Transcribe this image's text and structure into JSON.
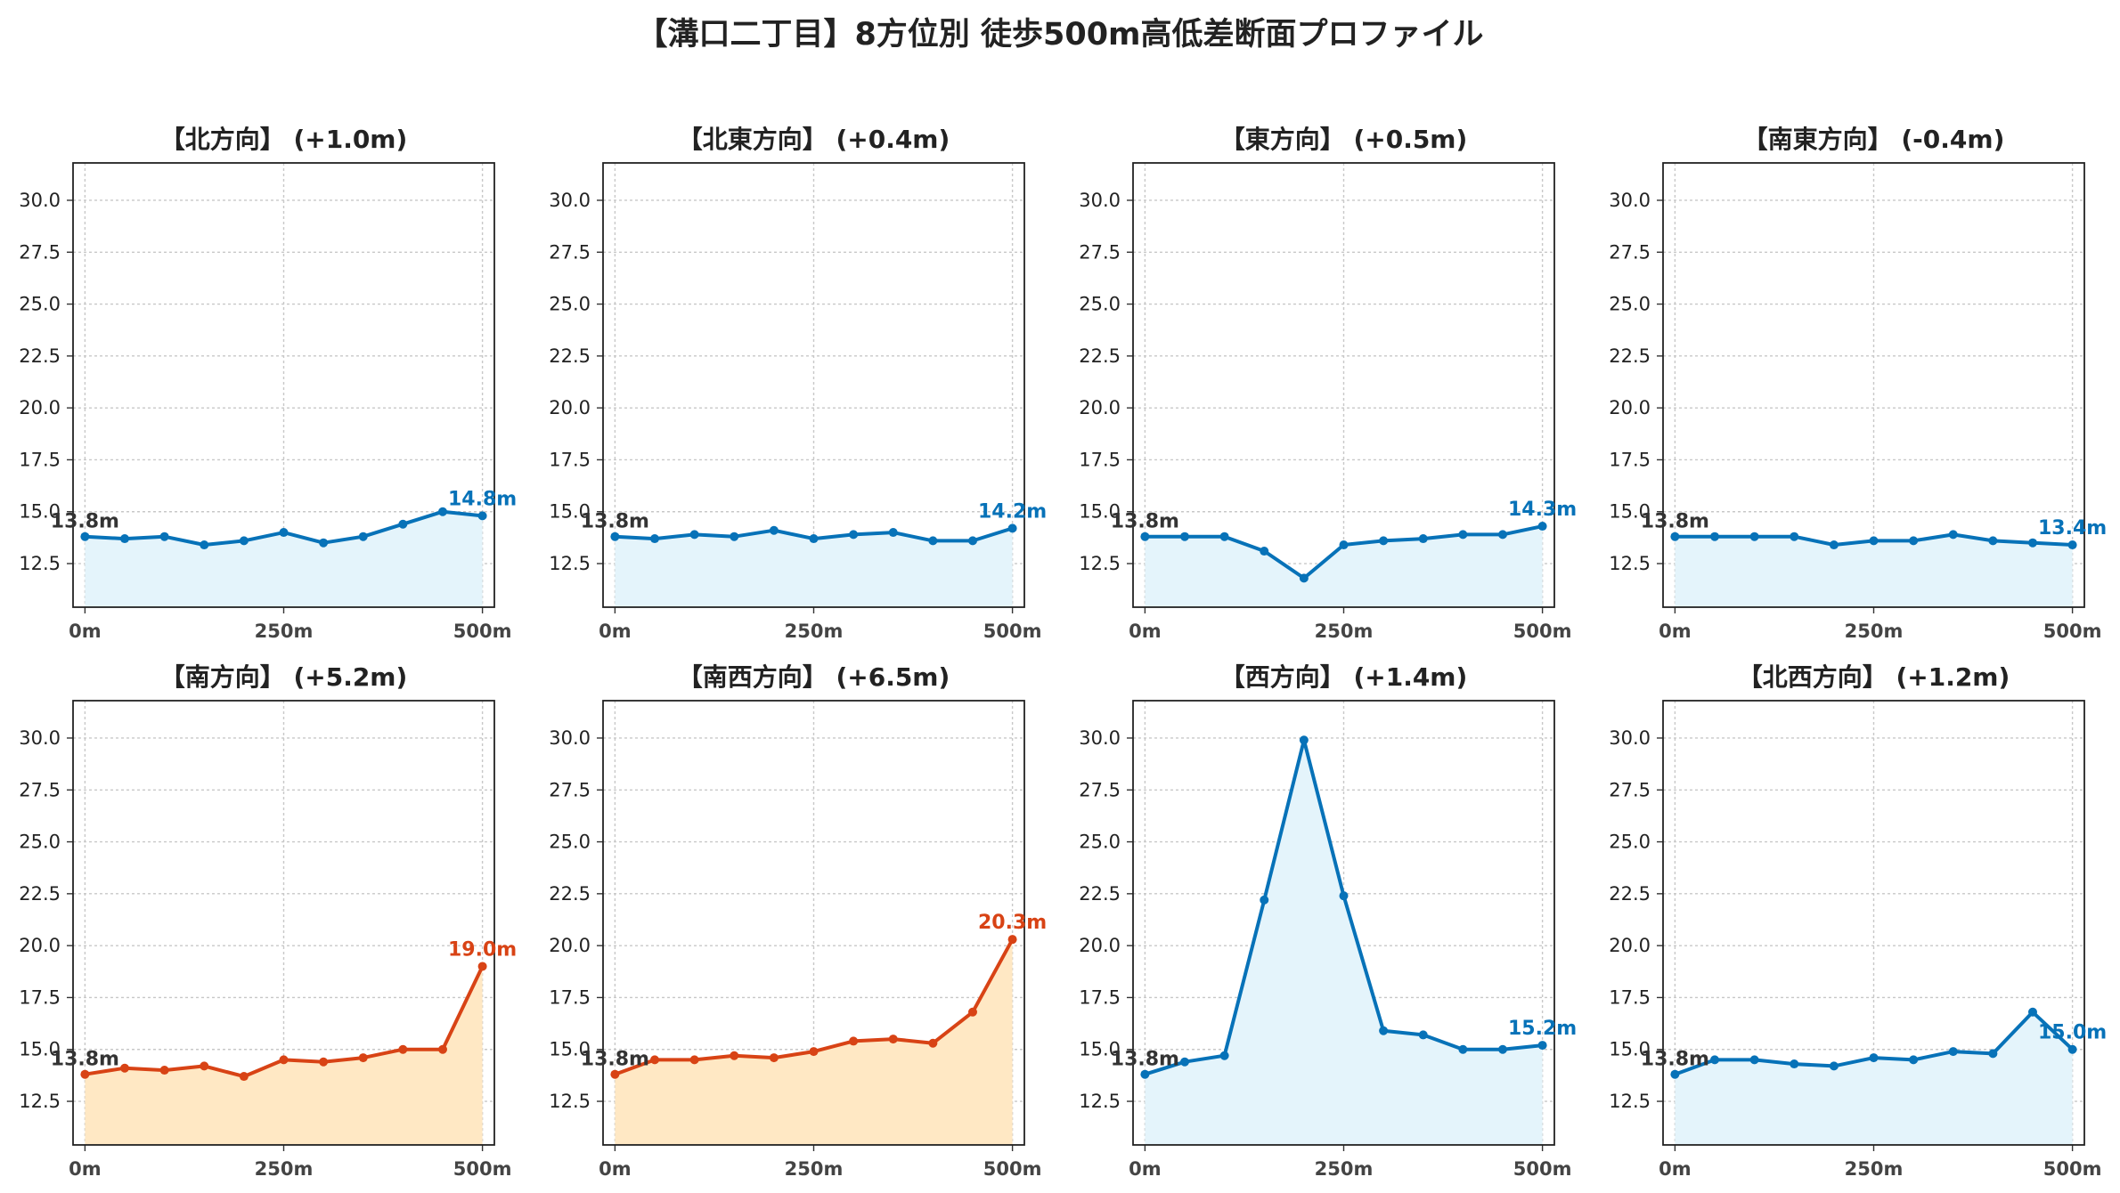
{
  "title": "【溝口二丁目】8方位別 徒歩500m高低差断面プロファイル",
  "colors": {
    "up": "#d84315",
    "up_fill": "#ffe8c4",
    "flat": "#0772b8",
    "flat_fill": "#e4f4fb",
    "grid": "#c8c8c8"
  },
  "chart_data": [
    {
      "type": "area",
      "title": "【北方向】 (+1.0m)",
      "trend": "flat",
      "x": [
        0,
        50,
        100,
        150,
        200,
        250,
        300,
        350,
        400,
        450,
        500
      ],
      "y": [
        13.8,
        13.7,
        13.8,
        13.4,
        13.6,
        14.0,
        13.5,
        13.8,
        14.4,
        15.0,
        14.8
      ],
      "start_label": "13.8m",
      "end_label": "14.8m"
    },
    {
      "type": "area",
      "title": "【北東方向】 (+0.4m)",
      "trend": "flat",
      "x": [
        0,
        50,
        100,
        150,
        200,
        250,
        300,
        350,
        400,
        450,
        500
      ],
      "y": [
        13.8,
        13.7,
        13.9,
        13.8,
        14.1,
        13.7,
        13.9,
        14.0,
        13.6,
        13.6,
        14.2
      ],
      "start_label": "13.8m",
      "end_label": "14.2m"
    },
    {
      "type": "area",
      "title": "【東方向】 (+0.5m)",
      "trend": "flat",
      "x": [
        0,
        50,
        100,
        150,
        200,
        250,
        300,
        350,
        400,
        450,
        500
      ],
      "y": [
        13.8,
        13.8,
        13.8,
        13.1,
        11.8,
        13.4,
        13.6,
        13.7,
        13.9,
        13.9,
        14.3
      ],
      "start_label": "13.8m",
      "end_label": "14.3m"
    },
    {
      "type": "area",
      "title": "【南東方向】 (-0.4m)",
      "trend": "flat",
      "x": [
        0,
        50,
        100,
        150,
        200,
        250,
        300,
        350,
        400,
        450,
        500
      ],
      "y": [
        13.8,
        13.8,
        13.8,
        13.8,
        13.4,
        13.6,
        13.6,
        13.9,
        13.6,
        13.5,
        13.4
      ],
      "start_label": "13.8m",
      "end_label": "13.4m"
    },
    {
      "type": "area",
      "title": "【南方向】 (+5.2m)",
      "trend": "up",
      "x": [
        0,
        50,
        100,
        150,
        200,
        250,
        300,
        350,
        400,
        450,
        500
      ],
      "y": [
        13.8,
        14.1,
        14.0,
        14.2,
        13.7,
        14.5,
        14.4,
        14.6,
        15.0,
        15.0,
        19.0
      ],
      "start_label": "13.8m",
      "end_label": "19.0m"
    },
    {
      "type": "area",
      "title": "【南西方向】 (+6.5m)",
      "trend": "up",
      "x": [
        0,
        50,
        100,
        150,
        200,
        250,
        300,
        350,
        400,
        450,
        500
      ],
      "y": [
        13.8,
        14.5,
        14.5,
        14.7,
        14.6,
        14.9,
        15.4,
        15.5,
        15.3,
        16.8,
        20.3
      ],
      "start_label": "13.8m",
      "end_label": "20.3m"
    },
    {
      "type": "area",
      "title": "【西方向】 (+1.4m)",
      "trend": "flat",
      "x": [
        0,
        50,
        100,
        150,
        200,
        250,
        300,
        350,
        400,
        450,
        500
      ],
      "y": [
        13.8,
        14.4,
        14.7,
        22.2,
        29.9,
        22.4,
        15.9,
        15.7,
        15.0,
        15.0,
        15.2
      ],
      "start_label": "13.8m",
      "end_label": "15.2m"
    },
    {
      "type": "area",
      "title": "【北西方向】 (+1.2m)",
      "trend": "flat",
      "x": [
        0,
        50,
        100,
        150,
        200,
        250,
        300,
        350,
        400,
        450,
        500
      ],
      "y": [
        13.8,
        14.5,
        14.5,
        14.3,
        14.2,
        14.6,
        14.5,
        14.9,
        14.8,
        16.8,
        15.0
      ],
      "start_label": "13.8m",
      "end_label": "15.0m"
    }
  ],
  "axes": {
    "yticks": [
      "12.5",
      "15.0",
      "17.5",
      "20.0",
      "22.5",
      "25.0",
      "27.5",
      "30.0"
    ],
    "xticks": [
      "0m",
      "250m",
      "500m"
    ],
    "ylim": [
      10.4,
      31.8
    ],
    "xlim": [
      -15,
      515
    ],
    "grid": true
  }
}
